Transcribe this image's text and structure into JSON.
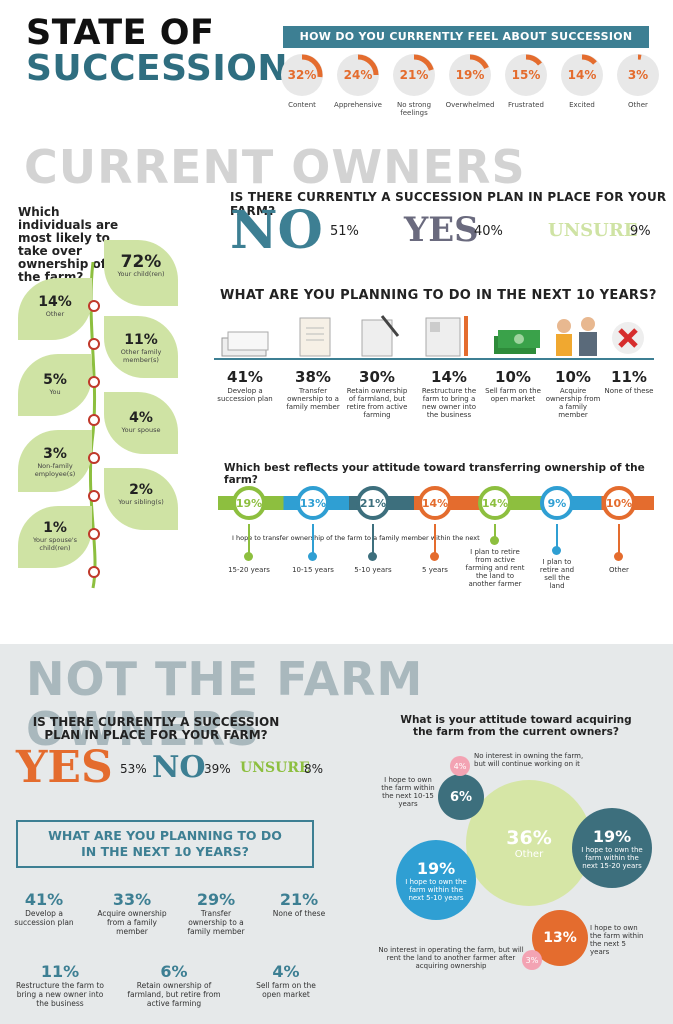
{
  "header": {
    "title_line1": "STATE OF",
    "title_line2": "SUCCESSION"
  },
  "feelings": {
    "question": "HOW DO YOU CURRENTLY FEEL ABOUT SUCCESSION PLANNING?",
    "items": [
      {
        "pct": "32%",
        "label": "Content",
        "value": 32
      },
      {
        "pct": "24%",
        "label": "Apprehensive",
        "value": 24
      },
      {
        "pct": "21%",
        "label": "No strong feelings",
        "value": 21
      },
      {
        "pct": "19%",
        "label": "Overwhelmed",
        "value": 19
      },
      {
        "pct": "15%",
        "label": "Frustrated",
        "value": 15
      },
      {
        "pct": "14%",
        "label": "Excited",
        "value": 14
      },
      {
        "pct": "3%",
        "label": "Other",
        "value": 3
      }
    ]
  },
  "current": {
    "heading": "CURRENT OWNERS",
    "takeover_question": "Which individuals are most likely to take over ownership of the farm?",
    "takeover": [
      {
        "pct": "72%",
        "label": "Your child(ren)"
      },
      {
        "pct": "14%",
        "label": "Other"
      },
      {
        "pct": "11%",
        "label": "Other family member(s)"
      },
      {
        "pct": "5%",
        "label": "You"
      },
      {
        "pct": "4%",
        "label": "Your spouse"
      },
      {
        "pct": "3%",
        "label": "Non-family employee(s)"
      },
      {
        "pct": "2%",
        "label": "Your sibling(s)"
      },
      {
        "pct": "1%",
        "label": "Your spouse's child(ren)"
      }
    ],
    "plan_question": "IS THERE CURRENTLY A SUCCESSION PLAN IN PLACE FOR YOUR FARM?",
    "no_word": "NO",
    "no_pct": "51%",
    "yes_word": "YES",
    "yes_pct": "40%",
    "unsure_word": "UNSURE",
    "unsure_pct": "9%",
    "next10_question": "WHAT ARE YOU PLANNING TO DO IN THE NEXT 10 YEARS?",
    "next10": [
      {
        "pct": "41%",
        "label": "Develop a succession plan",
        "icon": "documents-icon"
      },
      {
        "pct": "38%",
        "label": "Transfer ownership to a family member",
        "icon": "contract-icon"
      },
      {
        "pct": "30%",
        "label": "Retain ownership of farmland, but retire from active farming",
        "icon": "signing-icon"
      },
      {
        "pct": "14%",
        "label": "Restructure the farm to bring a new owner into the business",
        "icon": "resume-icon"
      },
      {
        "pct": "10%",
        "label": "Sell farm on the open market",
        "icon": "money-icon"
      },
      {
        "pct": "10%",
        "label": "Acquire ownership from a family member",
        "icon": "people-icon"
      },
      {
        "pct": "11%",
        "label": "None of these",
        "icon": "x-icon"
      }
    ],
    "attitude_question": "Which best reflects your attitude toward transferring ownership of the farm?",
    "attitude_caption": "I hope to transfer ownership of the farm to a family member within the next",
    "attitude": [
      {
        "pct": "19%",
        "label": "15-20 years",
        "color": "#8dbf3f"
      },
      {
        "pct": "13%",
        "label": "10-15 years",
        "color": "#2f9fd3"
      },
      {
        "pct": "21%",
        "label": "5-10 years",
        "color": "#3d6f7d"
      },
      {
        "pct": "14%",
        "label": "5 years",
        "color": "#e46c2e"
      },
      {
        "pct": "14%",
        "label": "I plan to retire from active farming and rent the land to another farmer",
        "color": "#8dbf3f"
      },
      {
        "pct": "9%",
        "label": "I plan to retire and sell the land",
        "color": "#2f9fd3"
      },
      {
        "pct": "10%",
        "label": "Other",
        "color": "#e46c2e"
      }
    ]
  },
  "not_owners": {
    "heading": "NOT THE FARM OWNERS",
    "plan_question": "IS THERE CURRENTLY A SUCCESSION PLAN IN PLACE FOR YOUR FARM?",
    "yes_word": "YES",
    "yes_pct": "53%",
    "no_word": "NO",
    "no_pct": "39%",
    "unsure_word": "UNSURE",
    "unsure_pct": "8%",
    "next10_question": "WHAT ARE YOU PLANNING TO DO IN THE NEXT 10 YEARS?",
    "next10": [
      {
        "pct": "41%",
        "label": "Develop a succession plan"
      },
      {
        "pct": "33%",
        "label": "Acquire ownership from a family member"
      },
      {
        "pct": "29%",
        "label": "Transfer ownership to a family member"
      },
      {
        "pct": "21%",
        "label": "None of these"
      },
      {
        "pct": "11%",
        "label": "Restructure the farm to bring a new owner into the business"
      },
      {
        "pct": "6%",
        "label": "Retain ownership of farmland, but retire from active farming"
      },
      {
        "pct": "4%",
        "label": "Sell farm on the open market"
      }
    ],
    "acquire_question": "What is your attitude toward acquiring the farm from the current owners?",
    "bubbles": [
      {
        "pct": "4%",
        "label": "No interest in owning the farm, but will continue working on it"
      },
      {
        "pct": "6%",
        "label": "I hope to own the farm within the next 10-15 years"
      },
      {
        "pct": "36%",
        "label": "Other"
      },
      {
        "pct": "19%",
        "label": "I hope to own the farm within the next 15-20 years"
      },
      {
        "pct": "19%",
        "label": "I hope to own the farm within the next 5-10 years"
      },
      {
        "pct": "13%",
        "label": "I hope to own the farm within the next 5 years"
      },
      {
        "pct": "3%",
        "label": "No interest in operating the farm, but will rent the land to another farmer after acquiring ownership"
      }
    ]
  },
  "colors": {
    "teal": "#3d7f93",
    "orange": "#e46c2e",
    "green": "#8dbf3f",
    "blue": "#2f9fd3",
    "grey": "#cfcfcf"
  }
}
